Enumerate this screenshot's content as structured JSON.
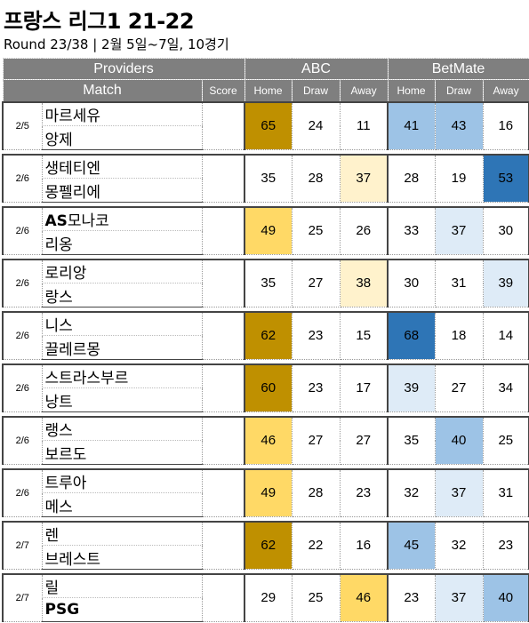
{
  "title": "프랑스 리그1 21-22",
  "subtitle": "Round 23/38  | 2월 5일~7일, 10경기",
  "headers": {
    "providers": "Providers",
    "abc": "ABC",
    "betmate": "BetMate",
    "match": "Match",
    "score": "Score",
    "home": "Home",
    "draw": "Draw",
    "away": "Away"
  },
  "colors": {
    "dark_gold": "#bf9000",
    "gold": "#ffd966",
    "light_gold": "#fff2cc",
    "dark_blue": "#2e75b6",
    "blue": "#9dc3e6",
    "light_blue": "#deebf7"
  },
  "matches": [
    {
      "date": "2/5",
      "home": "마르세유",
      "away": "앙제",
      "score": "",
      "abc": [
        "65",
        "24",
        "11"
      ],
      "betmate": [
        "41",
        "43",
        "16"
      ]
    },
    {
      "date": "2/6",
      "home": "생테티엔",
      "away": "몽펠리에",
      "score": "",
      "abc": [
        "35",
        "28",
        "37"
      ],
      "betmate": [
        "28",
        "19",
        "53"
      ]
    },
    {
      "date": "2/6",
      "home": "AS모나코",
      "away": "리옹",
      "score": "",
      "abc": [
        "49",
        "25",
        "26"
      ],
      "betmate": [
        "33",
        "37",
        "30"
      ]
    },
    {
      "date": "2/6",
      "home": "로리앙",
      "away": "랑스",
      "score": "",
      "abc": [
        "35",
        "27",
        "38"
      ],
      "betmate": [
        "30",
        "31",
        "39"
      ]
    },
    {
      "date": "2/6",
      "home": "니스",
      "away": "끌레르몽",
      "score": "",
      "abc": [
        "62",
        "23",
        "15"
      ],
      "betmate": [
        "68",
        "18",
        "14"
      ]
    },
    {
      "date": "2/6",
      "home": "스트라스부르",
      "away": "낭트",
      "score": "",
      "abc": [
        "60",
        "23",
        "17"
      ],
      "betmate": [
        "39",
        "27",
        "34"
      ]
    },
    {
      "date": "2/6",
      "home": "랭스",
      "away": "보르도",
      "score": "",
      "abc": [
        "46",
        "27",
        "27"
      ],
      "betmate": [
        "35",
        "40",
        "25"
      ]
    },
    {
      "date": "2/6",
      "home": "트루아",
      "away": "메스",
      "score": "",
      "abc": [
        "49",
        "28",
        "23"
      ],
      "betmate": [
        "32",
        "37",
        "31"
      ]
    },
    {
      "date": "2/7",
      "home": "렌",
      "away": "브레스트",
      "score": "",
      "abc": [
        "62",
        "22",
        "16"
      ],
      "betmate": [
        "45",
        "32",
        "23"
      ]
    },
    {
      "date": "2/7",
      "home": "릴",
      "away": "PSG",
      "score": "",
      "abc": [
        "29",
        "25",
        "46"
      ],
      "betmate": [
        "23",
        "37",
        "40"
      ]
    }
  ]
}
